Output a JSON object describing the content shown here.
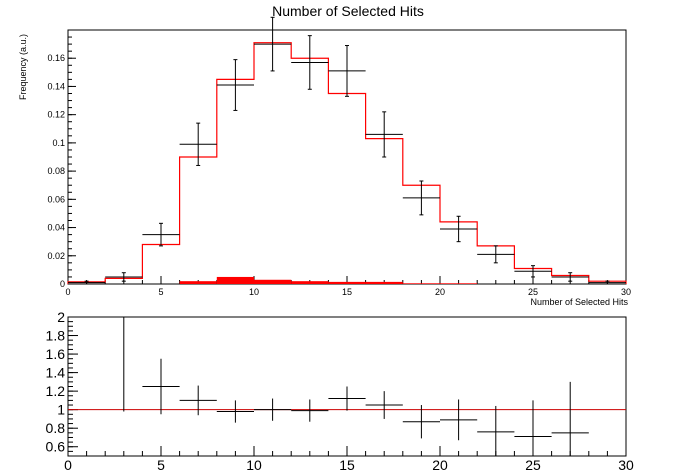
{
  "chart_data": [
    {
      "type": "histogram",
      "title": "Number of Selected Hits",
      "xlabel": "Number of Selected Hits",
      "ylabel": "Frequency (a.u.)",
      "xlim": [
        0,
        30
      ],
      "ylim": [
        0,
        0.18
      ],
      "x_ticks": [
        0,
        5,
        10,
        15,
        20,
        25,
        30
      ],
      "y_ticks": [
        0,
        0.02,
        0.04,
        0.06,
        0.08,
        0.1,
        0.12,
        0.14,
        0.16
      ],
      "bin_edges": [
        0,
        2,
        4,
        6,
        8,
        10,
        12,
        14,
        16,
        18,
        20,
        22,
        24,
        26,
        28,
        30
      ],
      "series": [
        {
          "style": "step",
          "color": "#ff0000",
          "values": [
            0.0015,
            0.004,
            0.028,
            0.09,
            0.145,
            0.171,
            0.16,
            0.135,
            0.103,
            0.07,
            0.044,
            0.027,
            0.011,
            0.006,
            0.002
          ]
        },
        {
          "style": "filled",
          "color": "#ff0000",
          "values": [
            0.0,
            0.0,
            0.0,
            0.002,
            0.005,
            0.003,
            0.002,
            0.0015,
            0.0015,
            0.0005,
            0.0005,
            0.0,
            0.0,
            0.0,
            0.0
          ]
        },
        {
          "style": "errorbar",
          "color": "#000000",
          "values": [
            0.001,
            0.005,
            0.035,
            0.099,
            0.141,
            0.17,
            0.157,
            0.151,
            0.106,
            0.061,
            0.039,
            0.021,
            0.009,
            0.005,
            0.001
          ],
          "errors": [
            0.001,
            0.003,
            0.008,
            0.015,
            0.018,
            0.019,
            0.019,
            0.018,
            0.016,
            0.012,
            0.009,
            0.006,
            0.004,
            0.003,
            0.001
          ]
        }
      ]
    },
    {
      "type": "errorbar",
      "xlim": [
        0,
        30
      ],
      "ylim": [
        0.5,
        2.0
      ],
      "x_ticks": [
        0,
        5,
        10,
        15,
        20,
        25,
        30
      ],
      "y_ticks": [
        0.6,
        0.8,
        1.0,
        1.2,
        1.4,
        1.6,
        1.8,
        2.0
      ],
      "y_tick_labels": [
        "0.6",
        "0.8",
        "1",
        "1.2",
        "1.4",
        "1.6",
        "1.8",
        "2"
      ],
      "reference_line": {
        "y": 1.0,
        "color": "#cc0000"
      },
      "x_half_width": 1,
      "points": [
        {
          "x": 3,
          "y": 1.25,
          "err": 0.3,
          "capped": true
        },
        {
          "x": 5,
          "y": 1.25,
          "err": 0.3
        },
        {
          "x": 7,
          "y": 1.1,
          "err": 0.16
        },
        {
          "x": 9,
          "y": 0.98,
          "err": 0.12
        },
        {
          "x": 11,
          "y": 1.0,
          "err": 0.12
        },
        {
          "x": 13,
          "y": 0.99,
          "err": 0.12
        },
        {
          "x": 15,
          "y": 1.12,
          "err": 0.13
        },
        {
          "x": 17,
          "y": 1.05,
          "err": 0.15
        },
        {
          "x": 19,
          "y": 0.87,
          "err": 0.18
        },
        {
          "x": 21,
          "y": 0.89,
          "err": 0.22
        },
        {
          "x": 23,
          "y": 0.76,
          "err": 0.28
        },
        {
          "x": 25,
          "y": 0.71,
          "err": 0.39
        },
        {
          "x": 27,
          "y": 0.75,
          "err": 0.55
        }
      ]
    }
  ]
}
